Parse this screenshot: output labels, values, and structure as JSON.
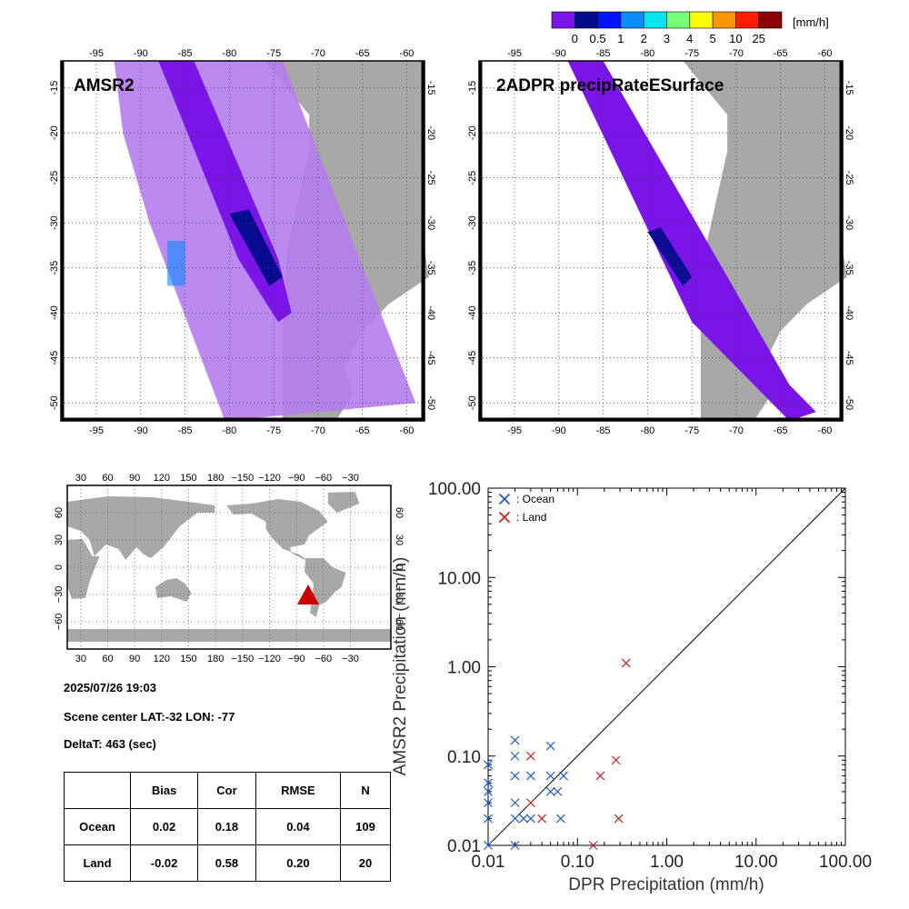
{
  "colorbar": {
    "unit": "[mm/h]",
    "tick_labels": [
      "0",
      "0.5",
      "1",
      "2",
      "3",
      "4",
      "5",
      "10",
      "25"
    ],
    "colors": [
      "#7b14e8",
      "#000b8c",
      "#0014ff",
      "#0a8cff",
      "#00e6f0",
      "#78ff78",
      "#ffff00",
      "#ff9600",
      "#ff1e00",
      "#8c0000"
    ]
  },
  "maps": [
    {
      "title": "AMSR2",
      "lon_ticks": [
        "-95",
        "-90",
        "-85",
        "-80",
        "-75",
        "-70",
        "-65",
        "-60"
      ],
      "lat_ticks": [
        "-15",
        "-20",
        "-25",
        "-30",
        "-35",
        "-40",
        "-45",
        "-50"
      ]
    },
    {
      "title": "2ADPR precipRateESurface",
      "lon_ticks": [
        "-95",
        "-90",
        "-85",
        "-80",
        "-75",
        "-70",
        "-65",
        "-60"
      ],
      "lat_ticks": [
        "-15",
        "-20",
        "-25",
        "-30",
        "-35",
        "-40",
        "-45",
        "-50"
      ]
    }
  ],
  "world_map": {
    "top_ticks": [
      "30",
      "60",
      "90",
      "120",
      "150",
      "180",
      "−150",
      "−120",
      "−90",
      "−60",
      "−30"
    ],
    "bottom_ticks": [
      "30",
      "60",
      "90",
      "120",
      "150",
      "180",
      "−150",
      "−120",
      "−90",
      "−60",
      "−30"
    ],
    "left_ticks": [
      "60",
      "30",
      "0",
      "−30",
      "−60"
    ],
    "right_ticks": [
      "60",
      "30",
      "0",
      "−30",
      "−60"
    ],
    "marker_color": "#cc0000"
  },
  "info": {
    "datetime": "2025/07/26 19:03",
    "scene_center": "Scene center LAT:-32   LON: -77",
    "delta_t": "DeltaT:  463 (sec)"
  },
  "stats_table": {
    "headers": [
      "",
      "Bias",
      "Cor",
      "RMSE",
      "N"
    ],
    "rows": [
      [
        "Ocean",
        "0.02",
        "0.18",
        "0.04",
        "109"
      ],
      [
        "Land",
        "-0.02",
        "0.58",
        "0.20",
        "20"
      ]
    ]
  },
  "chart_data": {
    "type": "scatter",
    "xlabel": "DPR Precipitation (mm/h)",
    "ylabel": "AMSR2 Precipitation (mm/h)",
    "x_scale": "log",
    "y_scale": "log",
    "xlim": [
      0.01,
      100
    ],
    "ylim": [
      0.01,
      100
    ],
    "x_tick_labels": [
      "0.01",
      "0.10",
      "1.00",
      "10.00",
      "100.00"
    ],
    "y_tick_labels": [
      "0.01",
      "0.10",
      "1.00",
      "10.00",
      "100.00"
    ],
    "legend_position": "top-left",
    "series": [
      {
        "name": ": Ocean",
        "marker": "x",
        "color": "#1e5ad2",
        "points": [
          [
            0.01,
            0.01
          ],
          [
            0.01,
            0.02
          ],
          [
            0.01,
            0.03
          ],
          [
            0.01,
            0.04
          ],
          [
            0.01,
            0.05
          ],
          [
            0.01,
            0.08
          ],
          [
            0.02,
            0.01
          ],
          [
            0.02,
            0.02
          ],
          [
            0.02,
            0.03
          ],
          [
            0.02,
            0.06
          ],
          [
            0.02,
            0.1
          ],
          [
            0.02,
            0.15
          ],
          [
            0.025,
            0.02
          ],
          [
            0.03,
            0.02
          ],
          [
            0.03,
            0.06
          ],
          [
            0.05,
            0.04
          ],
          [
            0.05,
            0.06
          ],
          [
            0.05,
            0.13
          ],
          [
            0.06,
            0.04
          ],
          [
            0.065,
            0.02
          ],
          [
            0.07,
            0.06
          ]
        ]
      },
      {
        "name": ": Land",
        "marker": "x",
        "color": "#c81e1e",
        "points": [
          [
            0.03,
            0.03
          ],
          [
            0.03,
            0.1
          ],
          [
            0.04,
            0.02
          ],
          [
            0.15,
            0.01
          ],
          [
            0.18,
            0.06
          ],
          [
            0.27,
            0.09
          ],
          [
            0.29,
            0.02
          ],
          [
            0.35,
            1.1
          ]
        ]
      }
    ],
    "reference_line": "1:1"
  }
}
